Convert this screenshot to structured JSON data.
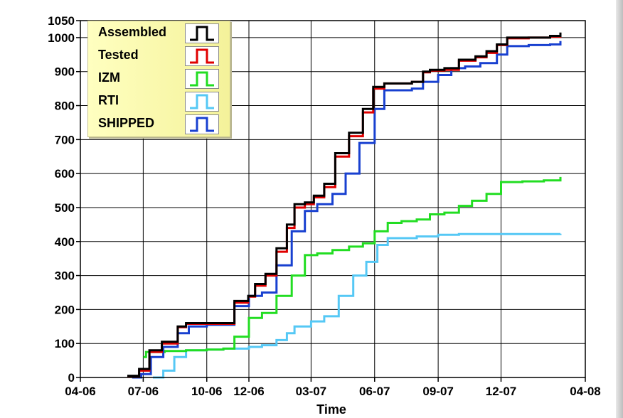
{
  "chart_data": {
    "type": "line",
    "title": "",
    "xlabel": "Time",
    "ylabel": "",
    "ylim": [
      0,
      1050
    ],
    "xlim": [
      "2006-04-01",
      "2008-04-01"
    ],
    "x_ticks": [
      "04-06",
      "07-06",
      "10-06",
      "12-06",
      "03-07",
      "06-07",
      "09-07",
      "12-07",
      "04-08"
    ],
    "y_ticks": [
      0,
      100,
      200,
      300,
      400,
      500,
      600,
      700,
      800,
      900,
      1000,
      1050
    ],
    "grid": true,
    "legend_position": "top-left",
    "series": [
      {
        "name": "Assembled",
        "color": "#000000",
        "x": [
          "2006-06-08",
          "2006-06-25",
          "2006-07-10",
          "2006-07-28",
          "2006-08-20",
          "2006-09-01",
          "2006-10-01",
          "2006-10-25",
          "2006-11-10",
          "2006-11-30",
          "2006-12-10",
          "2006-12-25",
          "2007-01-10",
          "2007-01-25",
          "2007-02-05",
          "2007-02-20",
          "2007-03-05",
          "2007-03-20",
          "2007-04-05",
          "2007-04-25",
          "2007-05-15",
          "2007-05-30",
          "2007-06-15",
          "2007-07-10",
          "2007-07-25",
          "2007-08-10",
          "2007-08-20",
          "2007-09-10",
          "2007-10-01",
          "2007-10-25",
          "2007-11-10",
          "2007-11-25",
          "2007-12-10",
          "2008-01-10",
          "2008-02-10",
          "2008-02-25"
        ],
        "y": [
          5,
          25,
          80,
          105,
          150,
          160,
          160,
          160,
          225,
          240,
          275,
          305,
          380,
          450,
          510,
          515,
          535,
          570,
          660,
          720,
          790,
          855,
          865,
          865,
          870,
          900,
          905,
          910,
          935,
          945,
          960,
          980,
          1000,
          1000,
          1005,
          1015
        ]
      },
      {
        "name": "Tested",
        "color": "#e00000",
        "x": [
          "2006-06-08",
          "2006-06-25",
          "2006-07-10",
          "2006-07-28",
          "2006-08-20",
          "2006-09-01",
          "2006-10-01",
          "2006-10-25",
          "2006-11-10",
          "2006-11-30",
          "2006-12-10",
          "2006-12-25",
          "2007-01-10",
          "2007-01-25",
          "2007-02-05",
          "2007-02-20",
          "2007-03-05",
          "2007-03-20",
          "2007-04-05",
          "2007-04-25",
          "2007-05-15",
          "2007-05-30",
          "2007-06-15",
          "2007-07-10",
          "2007-07-25",
          "2007-08-10",
          "2007-08-20",
          "2007-09-10",
          "2007-10-01",
          "2007-10-25",
          "2007-11-10",
          "2007-11-25",
          "2007-12-10",
          "2008-01-10",
          "2008-02-10",
          "2008-02-25"
        ],
        "y": [
          3,
          20,
          75,
          100,
          148,
          158,
          158,
          158,
          220,
          238,
          270,
          300,
          370,
          440,
          500,
          510,
          530,
          560,
          650,
          710,
          780,
          850,
          865,
          865,
          870,
          898,
          903,
          905,
          932,
          942,
          955,
          978,
          998,
          1000,
          1003,
          1010
        ]
      },
      {
        "name": "IZM",
        "color": "#22dd22",
        "x": [
          "2006-07-01",
          "2006-07-05",
          "2006-08-01",
          "2006-09-01",
          "2006-10-01",
          "2006-10-25",
          "2006-11-10",
          "2006-12-01",
          "2006-12-20",
          "2007-01-10",
          "2007-02-01",
          "2007-02-20",
          "2007-03-10",
          "2007-04-01",
          "2007-04-25",
          "2007-05-15",
          "2007-06-01",
          "2007-06-20",
          "2007-07-10",
          "2007-08-01",
          "2007-08-20",
          "2007-09-10",
          "2007-10-01",
          "2007-10-20",
          "2007-11-10",
          "2007-12-01",
          "2008-01-01",
          "2008-02-01",
          "2008-02-25"
        ],
        "y": [
          60,
          75,
          78,
          80,
          82,
          85,
          120,
          175,
          190,
          240,
          300,
          360,
          365,
          375,
          385,
          395,
          430,
          455,
          460,
          465,
          480,
          485,
          505,
          520,
          540,
          575,
          577,
          580,
          590
        ]
      },
      {
        "name": "RTI",
        "color": "#55c8f5",
        "x": [
          "2006-07-15",
          "2006-07-30",
          "2006-08-15",
          "2006-09-01",
          "2006-10-01",
          "2006-10-25",
          "2006-12-01",
          "2006-12-20",
          "2007-01-10",
          "2007-01-25",
          "2007-02-05",
          "2007-03-01",
          "2007-03-20",
          "2007-04-10",
          "2007-05-01",
          "2007-05-20",
          "2007-06-05",
          "2007-06-20",
          "2007-08-01",
          "2007-09-01",
          "2007-10-01",
          "2007-12-01",
          "2008-02-25"
        ],
        "y": [
          0,
          20,
          60,
          80,
          82,
          85,
          90,
          95,
          110,
          130,
          150,
          165,
          180,
          240,
          300,
          340,
          390,
          410,
          415,
          420,
          422,
          422,
          423
        ]
      },
      {
        "name": "SHIPPED",
        "color": "#1840d0",
        "x": [
          "2006-06-15",
          "2006-06-28",
          "2006-07-12",
          "2006-07-30",
          "2006-08-20",
          "2006-09-05",
          "2006-10-01",
          "2006-10-25",
          "2006-11-10",
          "2006-12-01",
          "2006-12-20",
          "2007-01-10",
          "2007-02-01",
          "2007-02-20",
          "2007-03-10",
          "2007-04-01",
          "2007-04-20",
          "2007-05-10",
          "2007-06-01",
          "2007-06-15",
          "2007-07-10",
          "2007-07-25",
          "2007-08-10",
          "2007-09-01",
          "2007-09-20",
          "2007-10-10",
          "2007-11-01",
          "2007-11-25",
          "2007-12-10",
          "2008-01-10",
          "2008-02-10",
          "2008-02-25"
        ],
        "y": [
          0,
          10,
          60,
          90,
          130,
          150,
          155,
          155,
          210,
          240,
          250,
          330,
          430,
          490,
          510,
          540,
          600,
          690,
          790,
          845,
          845,
          850,
          870,
          890,
          910,
          915,
          925,
          950,
          975,
          978,
          980,
          990
        ]
      }
    ]
  }
}
